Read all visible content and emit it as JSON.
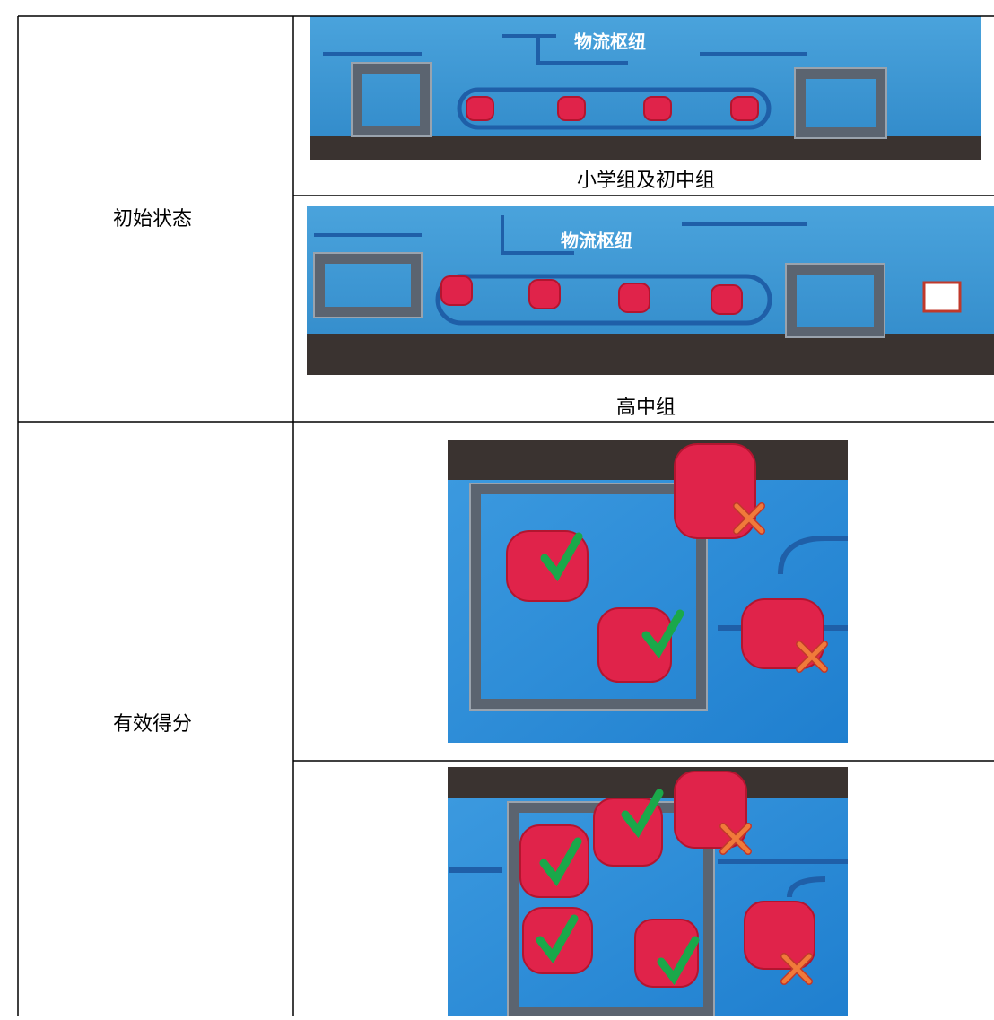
{
  "table": {
    "rows": [
      {
        "label": "初始状态",
        "cells": [
          {
            "caption": "小学组及初中组",
            "photo_text": "物流枢纽"
          },
          {
            "caption": "高中组",
            "photo_text": "物流枢纽"
          }
        ]
      },
      {
        "label": "有效得分"
      }
    ]
  }
}
